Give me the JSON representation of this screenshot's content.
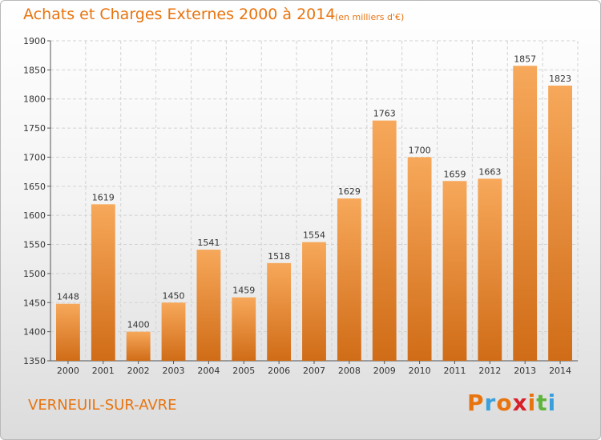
{
  "header": {
    "title": "Achats et Charges Externes 2000 à 2014",
    "unit": "(en milliers d'€)"
  },
  "footer": {
    "commune": "VERNEUIL-SUR-AVRE",
    "logo_text": "Proxiti"
  },
  "colors": {
    "accent": "#e8740f",
    "bar_light": "#f7a85a",
    "bar_dark": "#d06c17",
    "logo": [
      "#e8740f",
      "#3aa0dc",
      "#e8740f",
      "#d8202a",
      "#e8740f",
      "#5fb53c",
      "#3aa0dc"
    ]
  },
  "chart_data": {
    "type": "bar",
    "categories": [
      "2000",
      "2001",
      "2002",
      "2003",
      "2004",
      "2005",
      "2006",
      "2007",
      "2008",
      "2009",
      "2010",
      "2011",
      "2012",
      "2013",
      "2014"
    ],
    "values": [
      1448,
      1619,
      1400,
      1450,
      1541,
      1459,
      1518,
      1554,
      1629,
      1763,
      1700,
      1659,
      1663,
      1857,
      1823
    ],
    "ylim": [
      1350,
      1900
    ],
    "yticks": [
      1350,
      1400,
      1450,
      1500,
      1550,
      1600,
      1650,
      1700,
      1750,
      1800,
      1850,
      1900
    ],
    "grid": true,
    "data_labels": true
  }
}
